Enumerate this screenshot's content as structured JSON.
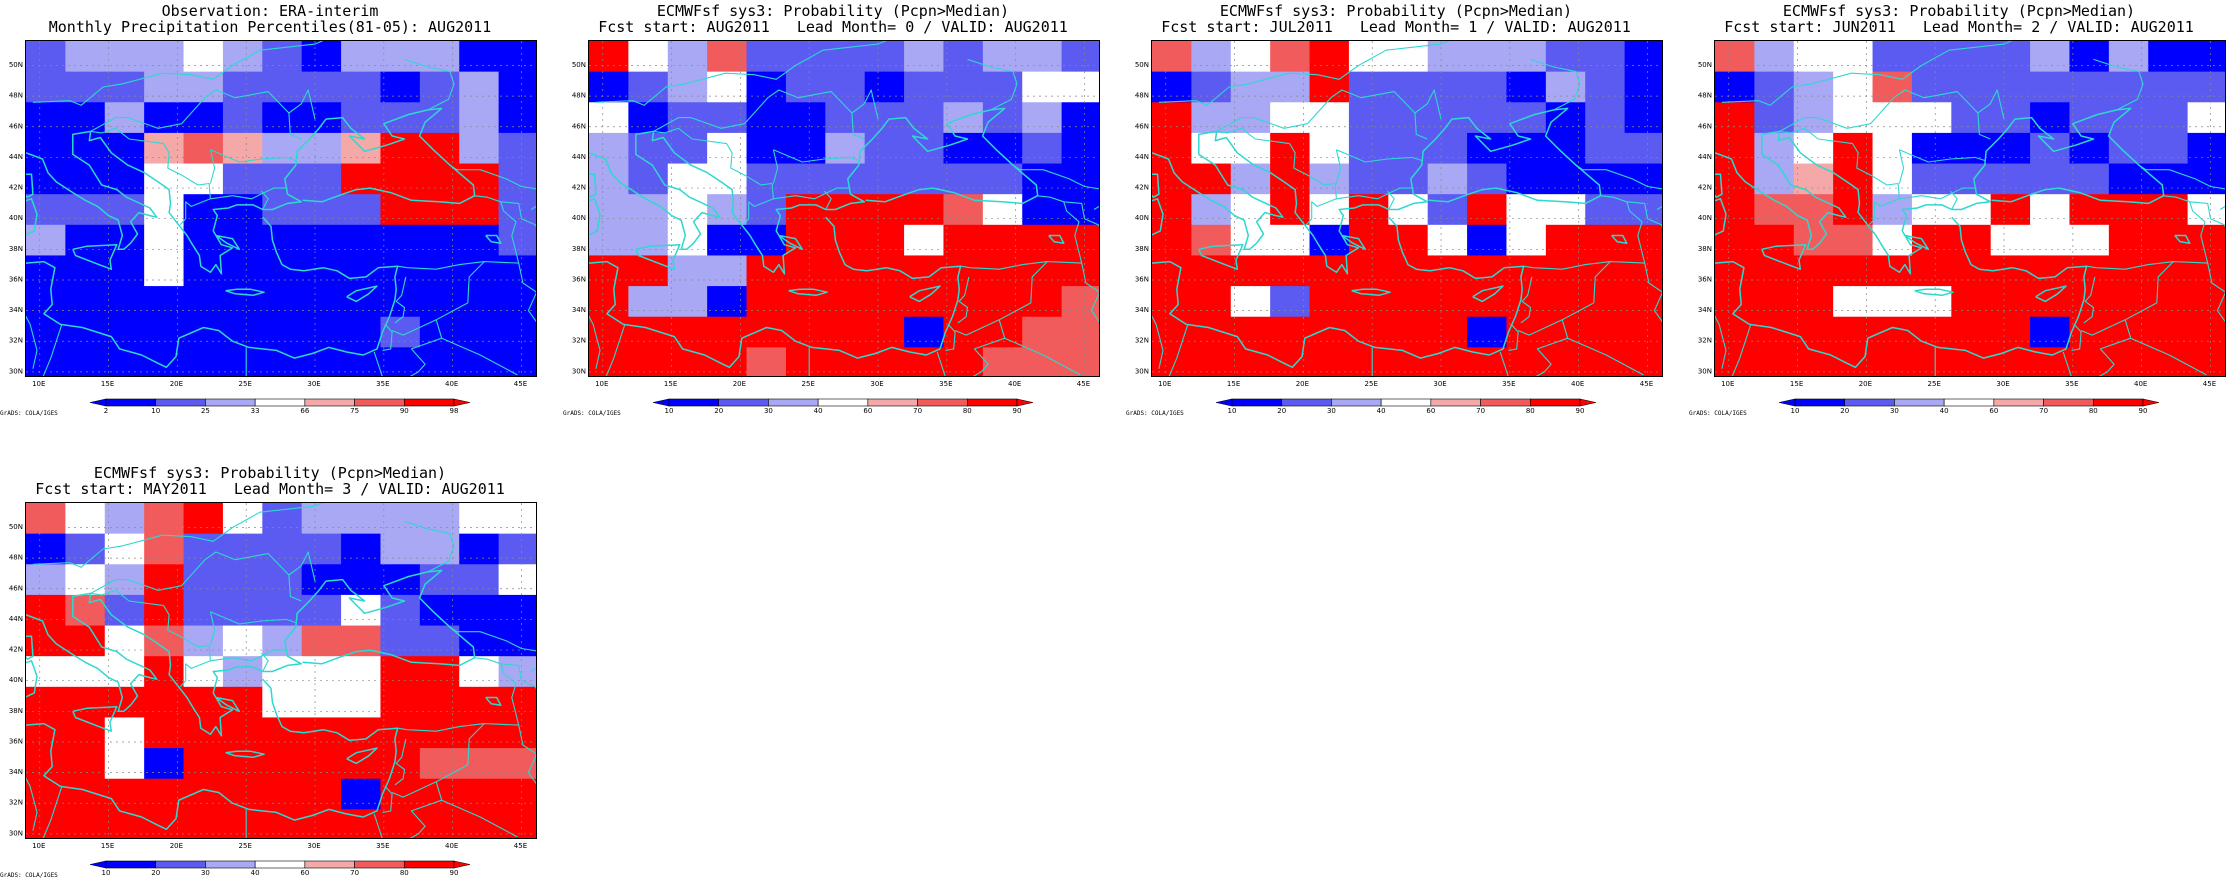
{
  "figure": {
    "colors": {
      "coast": "#2ed8d0",
      "grid": "#8a8a8a",
      "dark_blue": "#0000ff",
      "mid_blue": "#5b5bf2",
      "light_blue": "#a8a8f5",
      "white": "#ffffff",
      "light_red": "#f5a8a8",
      "mid_red": "#f25b5b",
      "dark_red": "#ff0000"
    },
    "lat_labels": [
      "50N",
      "48N",
      "46N",
      "44N",
      "42N",
      "40N",
      "38N",
      "36N",
      "34N",
      "32N",
      "30N"
    ],
    "lon_labels": [
      "10E",
      "15E",
      "20E",
      "25E",
      "30E",
      "35E",
      "40E",
      "45E"
    ],
    "credit": "GrADS: COLA/IGES"
  },
  "panels": [
    {
      "id": "obs",
      "title_line1": "Observation: ERA-interim",
      "title_line2": "Monthly Precipitation Percentiles(81-05): AUG2011",
      "colorbar_labels": [
        "2",
        "10",
        "25",
        "33",
        "66",
        "75",
        "90",
        "98"
      ],
      "grid": [
        "2333432133311",
        "2223322221231",
        "1131121122231",
        "1115653357732",
        "1114422288872",
        "2224112228882",
        "3114111111112",
        "1114111111111",
        "1111111111111",
        "1111111112111",
        "1111111111111"
      ]
    },
    {
      "id": "lead0",
      "title_line1": "ECMWFsf sys3: Probability (Pcpn>Median)",
      "title_line2": "Fcst start: AUG2011   Lead Month= 0 / VALID: AUG2011",
      "colorbar_labels": [
        "10",
        "20",
        "30",
        "40",
        "60",
        "70",
        "80",
        "90"
      ],
      "grid": [
        "7436222232332",
        "1234122122244",
        "4122112223231",
        "3224113221121",
        "3244222222211",
        "3343288776411",
        "3341188848888",
        "8833888888888",
        "8331888888776",
        "8888888818766",
        "8888688888666"
      ]
    },
    {
      "id": "lead1",
      "title_line1": "ECMWFsf sys3: Probability (Pcpn>Median)",
      "title_line2": "Fcst start: JUL2011   Lead Month= 1 / VALID: AUG2011",
      "colorbar_labels": [
        "10",
        "20",
        "30",
        "40",
        "60",
        "70",
        "80",
        "90"
      ],
      "grid": [
        "6346744333221",
        "1233722221321",
        "8334422222121",
        "7448422211122",
        "8738322321111",
        "7348484284422",
        "8644188414888",
        "8888888888888",
        "8842888888888",
        "8888888818888",
        "8887888888888"
      ]
    },
    {
      "id": "lead2",
      "title_line1": "ECMWFsf sys3: Probability (Pcpn>Median)",
      "title_line2": "Fcst start: JUN2011   Lead Month= 2 / VALID: AUG2011",
      "colorbar_labels": [
        "10",
        "20",
        "30",
        "40",
        "60",
        "70",
        "80",
        "90"
      ],
      "grid": [
        "6344222231311",
        "1234622222222",
        "8234442212224",
        "7348411121221",
        "7358422222111",
        "7668344848874",
        "8866488444888",
        "8888888888888",
        "8884448888888",
        "8888888818888",
        "8888888888888"
      ]
    },
    {
      "id": "lead3",
      "title_line1": "ECMWFsf sys3: Probability (Pcpn>Median)",
      "title_line2": "Fcst start: MAY2011   Lead Month= 3 / VALID: AUG2011",
      "colorbar_labels": [
        "10",
        "20",
        "30",
        "40",
        "60",
        "70",
        "80",
        "90"
      ],
      "grid": [
        "6436742333344",
        "1246222213312",
        "3437222111224",
        "7627222242111",
        "7746343662211",
        "4448434448843",
        "8888884448888",
        "8848888888888",
        "8841888888666",
        "8888888818777",
        "8888888888888"
      ]
    }
  ]
}
